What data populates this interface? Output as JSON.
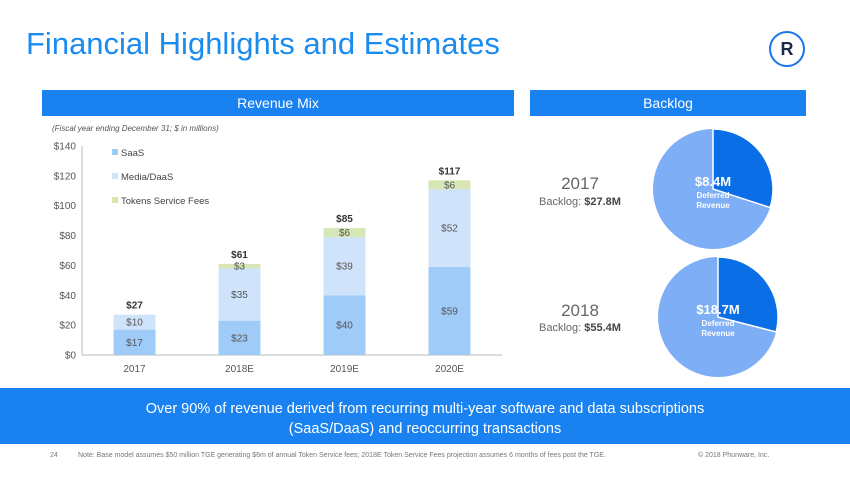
{
  "title": "Financial Highlights and Estimates",
  "logo_text": "R",
  "revenue_header": "Revenue Mix",
  "backlog_header": "Backlog",
  "fiscal_note": "(Fiscal year ending December 31; $ in millions)",
  "chart_data": {
    "type": "bar",
    "stacked": true,
    "categories": [
      "2017",
      "2018E",
      "2019E",
      "2020E"
    ],
    "series": [
      {
        "name": "SaaS",
        "values": [
          17,
          23,
          40,
          59
        ],
        "labels": [
          "$17",
          "$23",
          "$40",
          "$59"
        ],
        "color": "#9ecbf7"
      },
      {
        "name": "Media/DaaS",
        "values": [
          10,
          35,
          39,
          52
        ],
        "labels": [
          "$10",
          "$35",
          "$39",
          "$52"
        ],
        "color": "#cfe4fb"
      },
      {
        "name": "Tokens Service Fees",
        "values": [
          0,
          3,
          6,
          6
        ],
        "labels": [
          "",
          "$3",
          "$6",
          "$6"
        ],
        "color": "#d6e6b4"
      }
    ],
    "totals": [
      "$27",
      "$61",
      "$85",
      "$117"
    ],
    "ylim": [
      0,
      140
    ],
    "yticks": [
      0,
      20,
      40,
      60,
      80,
      100,
      120,
      140
    ],
    "ytick_labels": [
      "$0",
      "$20",
      "$40",
      "$60",
      "$80",
      "$100",
      "$120",
      "$140"
    ],
    "legend": "top-left"
  },
  "backlog": [
    {
      "year": "2017",
      "label": "Backlog: ",
      "value": "$27.8M",
      "deferred": "$8.4M",
      "deferred_label": "Deferred Revenue",
      "fraction": 0.3
    },
    {
      "year": "2018",
      "label": "Backlog: ",
      "value": "$55.4M",
      "deferred": "$18.7M",
      "deferred_label": "Deferred Revenue",
      "fraction": 0.29
    }
  ],
  "banner": [
    "Over 90% of revenue derived from recurring multi-year software and data subscriptions",
    "(SaaS/DaaS) and reoccurring transactions"
  ],
  "page_number": "24",
  "note": "Note: Base model assumes $50 million TGE generating $6m of annual Token Service fees; 2018E Token Service Fees projection assumes 6 months of fees post the TGE.",
  "copyright": "© 2018 Phunware, Inc.",
  "colors": {
    "accent": "#1a82f0",
    "pie_dark": "#0a6fe6",
    "pie_light": "#7eaef5"
  }
}
